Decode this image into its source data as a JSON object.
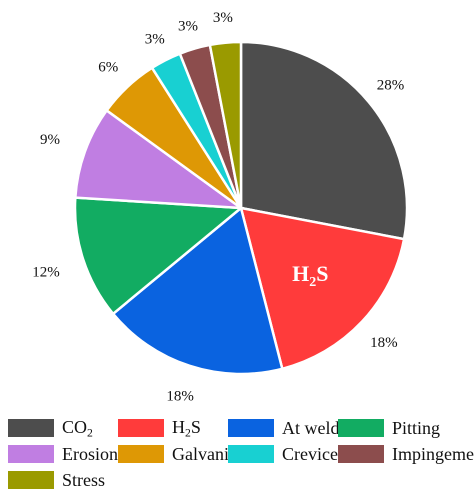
{
  "chart_data": {
    "type": "pie",
    "slices": [
      {
        "key": "co2",
        "label": "CO",
        "label_sub": "2",
        "value": 28,
        "pct_label": "28%",
        "color": "#4d4d4d"
      },
      {
        "key": "h2s",
        "label": "H",
        "label_sub": "2",
        "label_tail": "S",
        "value": 18,
        "pct_label": "18%",
        "color": "#ff3b3b"
      },
      {
        "key": "at-weld",
        "label": "At weld",
        "value": 18,
        "pct_label": "18%",
        "color": "#0a63e0"
      },
      {
        "key": "pitting",
        "label": "Pitting",
        "value": 12,
        "pct_label": "12%",
        "color": "#12ac62"
      },
      {
        "key": "erosion",
        "label": "Erosion",
        "value": 9,
        "pct_label": "9%",
        "color": "#c07ee2"
      },
      {
        "key": "galvanic",
        "label": "Galvanic",
        "value": 6,
        "pct_label": "6%",
        "color": "#de9805"
      },
      {
        "key": "crevice",
        "label": "Crevice",
        "value": 3,
        "pct_label": "3%",
        "color": "#18d0d2"
      },
      {
        "key": "impingement",
        "label": "Impingement",
        "value": 3,
        "pct_label": "3%",
        "color": "#8c4d4d"
      },
      {
        "key": "stress",
        "label": "Stress",
        "value": 3,
        "pct_label": "3%",
        "color": "#9a9a00"
      }
    ],
    "inslice_label": {
      "slice": "h2s",
      "text": "H",
      "sub": "2",
      "tail": "S"
    },
    "legend_placement": "bottom"
  }
}
